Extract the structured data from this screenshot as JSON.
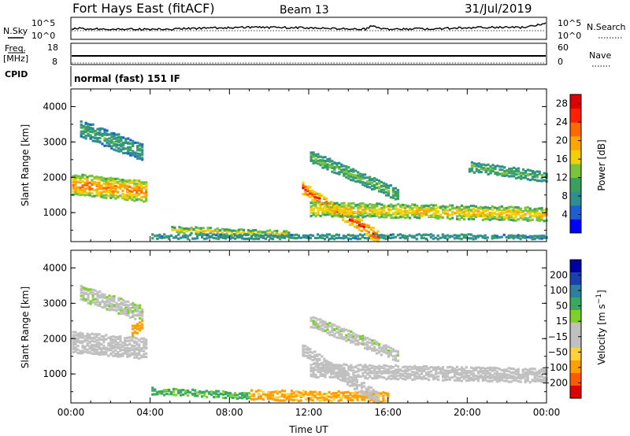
{
  "header": {
    "radar": "Fort Hays East (fitACF)",
    "beam": "Beam 13",
    "date": "31/Jul/2019"
  },
  "status_panels": {
    "nsky_label": "N.Sky",
    "nsearch_label": "N.Search",
    "nsky_ticks": [
      "10^5",
      "10^0"
    ],
    "nsearch_ticks": [
      "10^5",
      "10^0"
    ],
    "freq_label_line1": "Freq.",
    "freq_label_line2": "[MHz]",
    "freq_ticks": [
      "18",
      "8"
    ],
    "nave_label": "Nave",
    "nave_ticks": [
      "60",
      "0"
    ],
    "cpid_label": "CPID",
    "cpid_text": "normal (fast) 151 IF"
  },
  "colors": {
    "power_scale": [
      "#0000ff",
      "#1c5fd2",
      "#2f8f8f",
      "#3aa060",
      "#79c43a",
      "#f0d000",
      "#ffa500",
      "#ff6a00",
      "#ff2000",
      "#e00000"
    ],
    "velocity_scale": [
      "#e00000",
      "#ff5a00",
      "#ffa000",
      "#ffd23a",
      "#c0c0c0",
      "#c0c0c0",
      "#7ed02a",
      "#3aa860",
      "#2f7fa0",
      "#1c3fb0",
      "#0000a0"
    ]
  },
  "chart_data": [
    {
      "type": "heatmap",
      "name": "power",
      "xlabel": "",
      "ylabel": "Slant Range [km]",
      "x_ticks": [
        "00:00",
        "04:00",
        "08:00",
        "12:00",
        "16:00",
        "20:00",
        "00:00"
      ],
      "y_ticks": [
        "1000",
        "2000",
        "3000",
        "4000"
      ],
      "xlim_hours": [
        0,
        24
      ],
      "ylim_km": [
        180,
        4500
      ],
      "colorbar_label": "Power [dB]",
      "colorbar_ticks": [
        "4",
        "8",
        "12",
        "16",
        "20",
        "24",
        "28"
      ],
      "colorbar_range": [
        0,
        30
      ],
      "features": [
        {
          "start_h": 0.0,
          "end_h": 3.8,
          "range_start_km": 1800,
          "range_end_km": 1600,
          "thickness_km": 600,
          "level": 22
        },
        {
          "start_h": 0.4,
          "end_h": 3.6,
          "range_start_km": 3400,
          "range_end_km": 2700,
          "thickness_km": 500,
          "level": 11
        },
        {
          "start_h": 5.0,
          "end_h": 11.0,
          "range_start_km": 520,
          "range_end_km": 380,
          "thickness_km": 200,
          "level": 17
        },
        {
          "start_h": 4.0,
          "end_h": 24.0,
          "range_start_km": 320,
          "range_end_km": 320,
          "thickness_km": 150,
          "level": 10
        },
        {
          "start_h": 11.6,
          "end_h": 15.5,
          "range_start_km": 1700,
          "range_end_km": 300,
          "thickness_km": 350,
          "level": 26
        },
        {
          "start_h": 12.0,
          "end_h": 24.0,
          "range_start_km": 1100,
          "range_end_km": 950,
          "thickness_km": 400,
          "level": 19
        },
        {
          "start_h": 12.0,
          "end_h": 16.5,
          "range_start_km": 2600,
          "range_end_km": 1500,
          "thickness_km": 350,
          "level": 13
        },
        {
          "start_h": 20.0,
          "end_h": 24.0,
          "range_start_km": 2300,
          "range_end_km": 2000,
          "thickness_km": 300,
          "level": 12
        }
      ]
    },
    {
      "type": "heatmap",
      "name": "velocity",
      "xlabel": "Time UT",
      "ylabel": "Slant Range [km]",
      "x_ticks": [
        "00:00",
        "04:00",
        "08:00",
        "12:00",
        "16:00",
        "20:00",
        "00:00"
      ],
      "y_ticks": [
        "1000",
        "2000",
        "3000",
        "4000"
      ],
      "xlim_hours": [
        0,
        24
      ],
      "ylim_km": [
        180,
        4500
      ],
      "colorbar_label": "Velocity [m s^-1]",
      "colorbar_ticks": [
        "200",
        "100",
        "50",
        "15",
        "-15",
        "-50",
        "-100",
        "-200"
      ],
      "features": [
        {
          "start_h": 0.0,
          "end_h": 3.8,
          "range_start_km": 1900,
          "range_end_km": 1700,
          "thickness_km": 600,
          "velocity": 0
        },
        {
          "start_h": 0.4,
          "end_h": 3.6,
          "range_start_km": 3300,
          "range_end_km": 2700,
          "thickness_km": 450,
          "velocity": 5
        },
        {
          "start_h": 3.0,
          "end_h": 3.6,
          "range_start_km": 2200,
          "range_end_km": 2400,
          "thickness_km": 300,
          "velocity": -60
        },
        {
          "start_h": 4.0,
          "end_h": 9.0,
          "range_start_km": 520,
          "range_end_km": 380,
          "thickness_km": 200,
          "velocity": 40
        },
        {
          "start_h": 9.0,
          "end_h": 16.0,
          "range_start_km": 400,
          "range_end_km": 350,
          "thickness_km": 300,
          "velocity": -40
        },
        {
          "start_h": 11.6,
          "end_h": 15.5,
          "range_start_km": 1700,
          "range_end_km": 300,
          "thickness_km": 350,
          "velocity": 0
        },
        {
          "start_h": 12.0,
          "end_h": 24.0,
          "range_start_km": 1100,
          "range_end_km": 950,
          "thickness_km": 400,
          "velocity": 0
        },
        {
          "start_h": 12.0,
          "end_h": 16.5,
          "range_start_km": 2500,
          "range_end_km": 1500,
          "thickness_km": 350,
          "velocity": 5
        }
      ]
    }
  ]
}
